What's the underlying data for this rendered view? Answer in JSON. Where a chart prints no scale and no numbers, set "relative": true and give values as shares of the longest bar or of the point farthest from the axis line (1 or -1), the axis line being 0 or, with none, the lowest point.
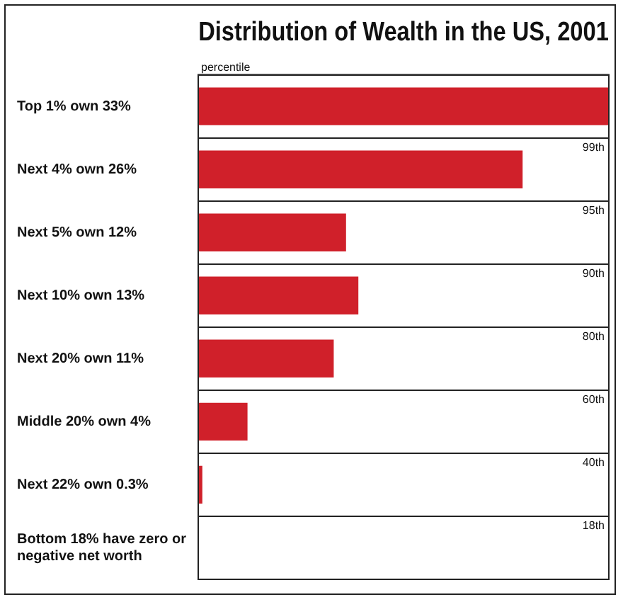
{
  "chart_data": {
    "type": "bar",
    "orientation": "horizontal",
    "title": "Distribution of Wealth in the US, 2001",
    "categories": [
      "Top 1% own 33%",
      "Next 4% own 26%",
      "Next 5% own 12%",
      "Next 10% own 13%",
      "Next 20% own 11%",
      "Middle 20% own 4%",
      "Next 22% own 0.3%",
      "Bottom 18% have zero or negative net worth"
    ],
    "relative": true,
    "values": [
      1,
      0.79,
      0.36,
      0.39,
      0.33,
      0.12,
      0.01,
      0
    ],
    "color": "#d0202a",
    "annotations": [
      "percentile",
      "99th",
      "95th",
      "90th",
      "80th",
      "60th",
      "40th",
      "18th"
    ],
    "grid": "y"
  }
}
